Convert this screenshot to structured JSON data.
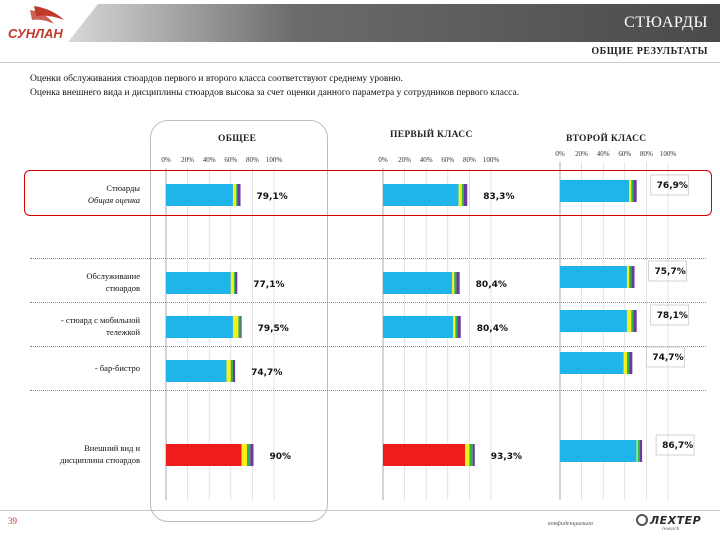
{
  "header": {
    "title": "СТЮАРДЫ",
    "subtitle": "ОБЩИЕ РЕЗУЛЬТАТЫ",
    "logo_text": "СУНЛАН"
  },
  "intro": {
    "line1": "Оценки  обслуживания стюардов первого и второго класса соответствуют среднему уровню.",
    "line2": "Оценка внешнего вида и дисциплины стюардов высока за счет оценки данного параметра у сотрудников первого класса."
  },
  "footer": {
    "page_number": "39",
    "confidential": "конфиденциально",
    "brand": "ЛЕХТЕР",
    "brand_sub": "research"
  },
  "colors": {
    "blue": "#1fb4ea",
    "red": "#ee1c1c",
    "yellow": "#f7ee1a",
    "green": "#2eb34a",
    "purple": "#6b3aa0",
    "highlight": "#d40000"
  },
  "chart_data": {
    "type": "bar",
    "orientation": "horizontal",
    "stacked": true,
    "xlim": [
      0,
      100
    ],
    "x_ticks": [
      "0%",
      "20%",
      "40%",
      "60%",
      "80%",
      "100%"
    ],
    "panels": [
      "ОБЩЕЕ",
      "ПЕРВЫЙ КЛАСС",
      "ВТОРОЙ КЛАСС"
    ],
    "categories": [
      {
        "label": "Стюарды",
        "label2": "Общая оценка",
        "italic2": true
      },
      {
        "label": "Обслуживание",
        "label2": "стюардов",
        "italic2": false
      },
      {
        "label": "- стюард с мобильной",
        "label2": "тележкой",
        "italic2": false
      },
      {
        "label": "- бар-бистро",
        "label2": "",
        "italic2": false
      },
      {
        "label": "Внешний вид и",
        "label2": "дисциплина стюардов",
        "italic2": false
      }
    ],
    "values": [
      [
        "79,1%",
        "83,3%",
        "76,9%"
      ],
      [
        "77,1%",
        "80,4%",
        "75,7%"
      ],
      [
        "79,5%",
        "80,4%",
        "78,1%"
      ],
      [
        "74,7%",
        "",
        "74,7%"
      ],
      [
        "90%",
        "93,3%",
        "86,7%"
      ]
    ],
    "segments": [
      [
        [
          {
            "c": "blue",
            "v": 62
          },
          {
            "c": "yellow",
            "v": 3
          },
          {
            "c": "green",
            "v": 1
          },
          {
            "c": "purple",
            "v": 3
          }
        ],
        [
          {
            "c": "blue",
            "v": 70
          },
          {
            "c": "yellow",
            "v": 3
          },
          {
            "c": "green",
            "v": 2
          },
          {
            "c": "purple",
            "v": 3
          }
        ],
        [
          {
            "c": "blue",
            "v": 64
          },
          {
            "c": "yellow",
            "v": 2
          },
          {
            "c": "green",
            "v": 2
          },
          {
            "c": "purple",
            "v": 3
          }
        ]
      ],
      [
        [
          {
            "c": "blue",
            "v": 60
          },
          {
            "c": "yellow",
            "v": 3
          },
          {
            "c": "green",
            "v": 1
          },
          {
            "c": "purple",
            "v": 2
          }
        ],
        [
          {
            "c": "blue",
            "v": 64
          },
          {
            "c": "yellow",
            "v": 2
          },
          {
            "c": "green",
            "v": 2
          },
          {
            "c": "purple",
            "v": 3
          }
        ],
        [
          {
            "c": "blue",
            "v": 62
          },
          {
            "c": "yellow",
            "v": 2
          },
          {
            "c": "green",
            "v": 2
          },
          {
            "c": "purple",
            "v": 3
          }
        ]
      ],
      [
        [
          {
            "c": "blue",
            "v": 62
          },
          {
            "c": "yellow",
            "v": 5
          },
          {
            "c": "green",
            "v": 2
          },
          {
            "c": "purple",
            "v": 1
          }
        ],
        [
          {
            "c": "blue",
            "v": 65
          },
          {
            "c": "yellow",
            "v": 2
          },
          {
            "c": "green",
            "v": 2
          },
          {
            "c": "purple",
            "v": 3
          }
        ],
        [
          {
            "c": "blue",
            "v": 62
          },
          {
            "c": "yellow",
            "v": 4
          },
          {
            "c": "green",
            "v": 2
          },
          {
            "c": "purple",
            "v": 3
          }
        ]
      ],
      [
        [
          {
            "c": "blue",
            "v": 56
          },
          {
            "c": "yellow",
            "v": 4
          },
          {
            "c": "green",
            "v": 2
          },
          {
            "c": "purple",
            "v": 2
          }
        ],
        null,
        [
          {
            "c": "blue",
            "v": 59
          },
          {
            "c": "yellow",
            "v": 3
          },
          {
            "c": "green",
            "v": 2
          },
          {
            "c": "purple",
            "v": 3
          }
        ]
      ],
      [
        [
          {
            "c": "red",
            "v": 70
          },
          {
            "c": "yellow",
            "v": 5
          },
          {
            "c": "green",
            "v": 3
          },
          {
            "c": "purple",
            "v": 3
          }
        ],
        [
          {
            "c": "red",
            "v": 76
          },
          {
            "c": "yellow",
            "v": 4
          },
          {
            "c": "green",
            "v": 3
          },
          {
            "c": "purple",
            "v": 2
          }
        ],
        [
          {
            "c": "blue",
            "v": 71
          },
          {
            "c": "yellow",
            "v": 1
          },
          {
            "c": "green",
            "v": 2
          },
          {
            "c": "purple",
            "v": 2
          }
        ]
      ]
    ]
  }
}
